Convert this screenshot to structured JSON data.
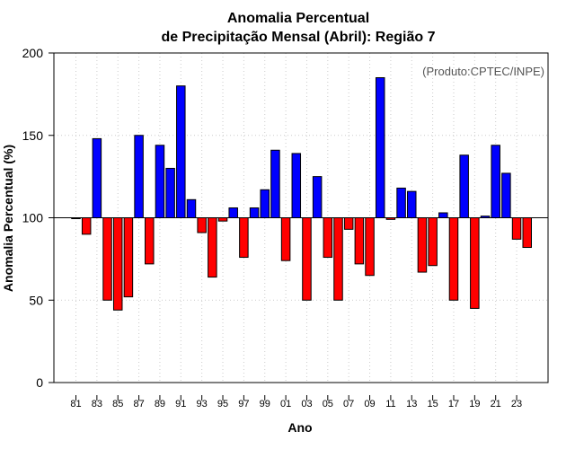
{
  "chart_data": {
    "type": "bar",
    "title": "Anomalia Percentual",
    "subtitle": "de Precipitação Mensal (Abril): Região 7",
    "xlabel": "Ano",
    "ylabel": "Anomalia Percentual (%)",
    "credit": "(Produto:CPTEC/INPE)",
    "ylim": [
      0,
      200
    ],
    "yticks": [
      0,
      50,
      100,
      150,
      200
    ],
    "baseline": 100,
    "grid": true,
    "colors": {
      "above": "#0000ff",
      "below": "#ff0000",
      "baseline": "#000000",
      "grid": "#cccccc"
    },
    "categories": [
      "1981",
      "1982",
      "1983",
      "1984",
      "1985",
      "1986",
      "1987",
      "1988",
      "1989",
      "1990",
      "1991",
      "1992",
      "1993",
      "1994",
      "1995",
      "1996",
      "1997",
      "1998",
      "1999",
      "2000",
      "2001",
      "2002",
      "2003",
      "2004",
      "2005",
      "2006",
      "2007",
      "2008",
      "2009",
      "2010",
      "2011",
      "2012",
      "2013",
      "2014",
      "2015",
      "2016",
      "2017",
      "2018",
      "2019",
      "2020",
      "2021",
      "2022",
      "2023",
      "2024"
    ],
    "xtick_labels": [
      "81",
      "83",
      "85",
      "87",
      "89",
      "91",
      "93",
      "95",
      "97",
      "99",
      "01",
      "03",
      "05",
      "07",
      "09",
      "11",
      "13",
      "15",
      "17",
      "19",
      "21",
      "23"
    ],
    "values": [
      99.5,
      90,
      148,
      50,
      44,
      52,
      150,
      72,
      144,
      130,
      180,
      111,
      91,
      64,
      98,
      106,
      76,
      106,
      117,
      141,
      74,
      139,
      50,
      125,
      76,
      50,
      93,
      72,
      65,
      185,
      99,
      118,
      116,
      67,
      71,
      103,
      50,
      138,
      45,
      101,
      144,
      127,
      87,
      82
    ]
  }
}
